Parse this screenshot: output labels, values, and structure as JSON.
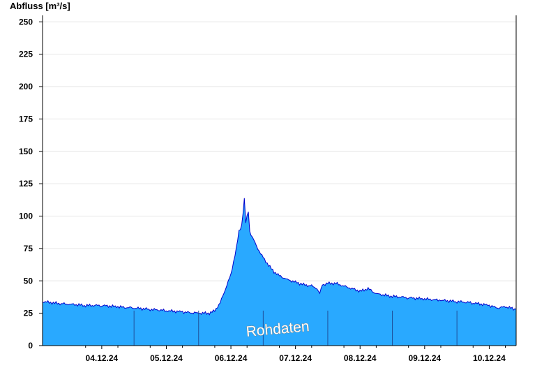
{
  "chart_data": {
    "type": "area",
    "ylabel": "Abfluss [m³/s]",
    "ylim": [
      0,
      255
    ],
    "yticks": [
      0,
      25,
      50,
      75,
      100,
      125,
      150,
      175,
      200,
      225,
      250
    ],
    "xlim": [
      "03.12.24 14:00",
      "10.12.24 22:00"
    ],
    "x_tick_labels": [
      "04.12.24",
      "05.12.24",
      "06.12.24",
      "07.12.24",
      "08.12.24",
      "09.12.24",
      "10.12.24"
    ],
    "grid": "horizontal",
    "watermark": "Rohdaten",
    "colors": {
      "fill": "#29a9ff",
      "line": "#0000cc",
      "grid": "#e6e6e6"
    },
    "series": [
      {
        "points": [
          [
            "03.12.24 14:00",
            34
          ],
          [
            "03.12.24 18:00",
            33
          ],
          [
            "03.12.24 22:00",
            32
          ],
          [
            "04.12.24 00:00",
            32
          ],
          [
            "04.12.24 06:00",
            31
          ],
          [
            "04.12.24 12:00",
            31
          ],
          [
            "04.12.24 18:00",
            30
          ],
          [
            "04.12.24 23:00",
            29
          ],
          [
            "05.12.24 00:00",
            29
          ],
          [
            "05.12.24 06:00",
            28
          ],
          [
            "05.12.24 12:00",
            27
          ],
          [
            "05.12.24 18:00",
            26
          ],
          [
            "05.12.24 23:00",
            25
          ],
          [
            "06.12.24 00:00",
            25
          ],
          [
            "06.12.24 04:00",
            25
          ],
          [
            "06.12.24 06:00",
            27
          ],
          [
            "06.12.24 08:00",
            33
          ],
          [
            "06.12.24 10:00",
            44
          ],
          [
            "06.12.24 12:00",
            55
          ],
          [
            "06.12.24 14:00",
            75
          ],
          [
            "06.12.24 15:00",
            88
          ],
          [
            "06.12.24 16:00",
            93
          ],
          [
            "06.12.24 17:00",
            113
          ],
          [
            "06.12.24 17:30",
            95
          ],
          [
            "06.12.24 18:30",
            104
          ],
          [
            "06.12.24 19:00",
            88
          ],
          [
            "06.12.24 21:00",
            79
          ],
          [
            "06.12.24 23:00",
            71
          ],
          [
            "07.12.24 00:00",
            68
          ],
          [
            "07.12.24 02:00",
            62
          ],
          [
            "07.12.24 04:00",
            57
          ],
          [
            "07.12.24 06:00",
            54
          ],
          [
            "07.12.24 09:00",
            51
          ],
          [
            "07.12.24 12:00",
            49
          ],
          [
            "07.12.24 15:00",
            47
          ],
          [
            "07.12.24 18:00",
            46
          ],
          [
            "07.12.24 20:00",
            44
          ],
          [
            "07.12.24 21:00",
            40
          ],
          [
            "07.12.24 22:00",
            47
          ],
          [
            "08.12.24 00:00",
            48
          ],
          [
            "08.12.24 03:00",
            48
          ],
          [
            "08.12.24 06:00",
            46
          ],
          [
            "08.12.24 09:00",
            44
          ],
          [
            "08.12.24 12:00",
            42
          ],
          [
            "08.12.24 15:00",
            44
          ],
          [
            "08.12.24 18:00",
            40
          ],
          [
            "09.12.24 00:00",
            38
          ],
          [
            "09.12.24 06:00",
            37
          ],
          [
            "09.12.24 12:00",
            36
          ],
          [
            "09.12.24 18:00",
            35
          ],
          [
            "10.12.24 00:00",
            34
          ],
          [
            "10.12.24 06:00",
            33
          ],
          [
            "10.12.24 12:00",
            31
          ],
          [
            "10.12.24 15:00",
            29
          ],
          [
            "10.12.24 18:00",
            30
          ],
          [
            "10.12.24 22:00",
            28
          ]
        ]
      }
    ]
  }
}
